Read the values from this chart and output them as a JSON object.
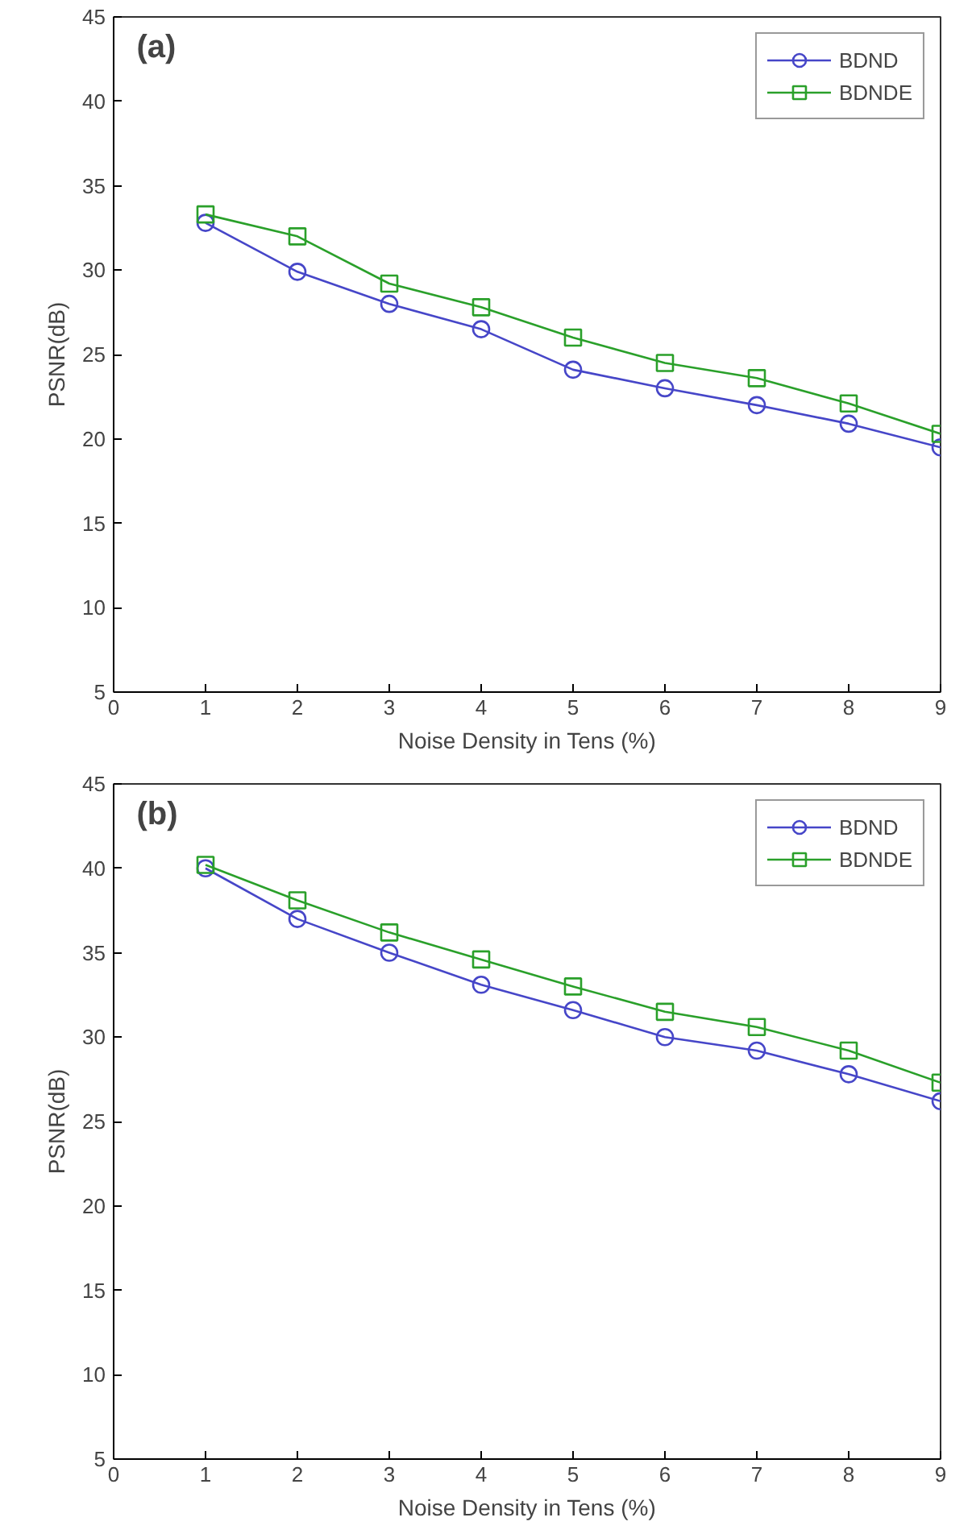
{
  "chart_data": [
    {
      "type": "line",
      "annotations": [
        "(a)"
      ],
      "xlabel": "Noise Density in Tens (%)",
      "ylabel": "PSNR(dB)",
      "x": [
        1,
        2,
        3,
        4,
        5,
        6,
        7,
        8,
        9
      ],
      "xlim": [
        0,
        9
      ],
      "xticks": [
        0,
        1,
        2,
        3,
        4,
        5,
        6,
        7,
        8,
        9
      ],
      "ylim": [
        5,
        45
      ],
      "yticks": [
        5,
        10,
        15,
        20,
        25,
        30,
        35,
        40,
        45
      ],
      "grid": false,
      "legend": "top right",
      "line_style": "solid",
      "series": [
        {
          "name": "BDND",
          "color": "#4646c8",
          "marker": "circle",
          "values": [
            32.8,
            29.9,
            28.0,
            26.5,
            24.1,
            23.0,
            22.0,
            20.9,
            19.5
          ]
        },
        {
          "name": "BDNDE",
          "color": "#2aa02a",
          "marker": "square",
          "values": [
            33.3,
            32.0,
            29.2,
            27.8,
            26.0,
            24.5,
            23.6,
            22.1,
            20.3
          ]
        }
      ]
    },
    {
      "type": "line",
      "annotations": [
        "(b)"
      ],
      "xlabel": "Noise Density in Tens (%)",
      "ylabel": "PSNR(dB)",
      "x": [
        1,
        2,
        3,
        4,
        5,
        6,
        7,
        8,
        9
      ],
      "xlim": [
        0,
        9
      ],
      "xticks": [
        0,
        1,
        2,
        3,
        4,
        5,
        6,
        7,
        8,
        9
      ],
      "ylim": [
        5,
        45
      ],
      "yticks": [
        5,
        10,
        15,
        20,
        25,
        30,
        35,
        40,
        45
      ],
      "grid": false,
      "legend": "top right",
      "line_style": "solid",
      "series": [
        {
          "name": "BDND",
          "color": "#4646c8",
          "marker": "circle",
          "values": [
            40.0,
            37.0,
            35.0,
            33.1,
            31.6,
            30.0,
            29.2,
            27.8,
            26.2
          ]
        },
        {
          "name": "BDNDE",
          "color": "#2aa02a",
          "marker": "square",
          "values": [
            40.2,
            38.1,
            36.2,
            34.6,
            33.0,
            31.5,
            30.6,
            29.2,
            27.3
          ]
        }
      ]
    }
  ]
}
